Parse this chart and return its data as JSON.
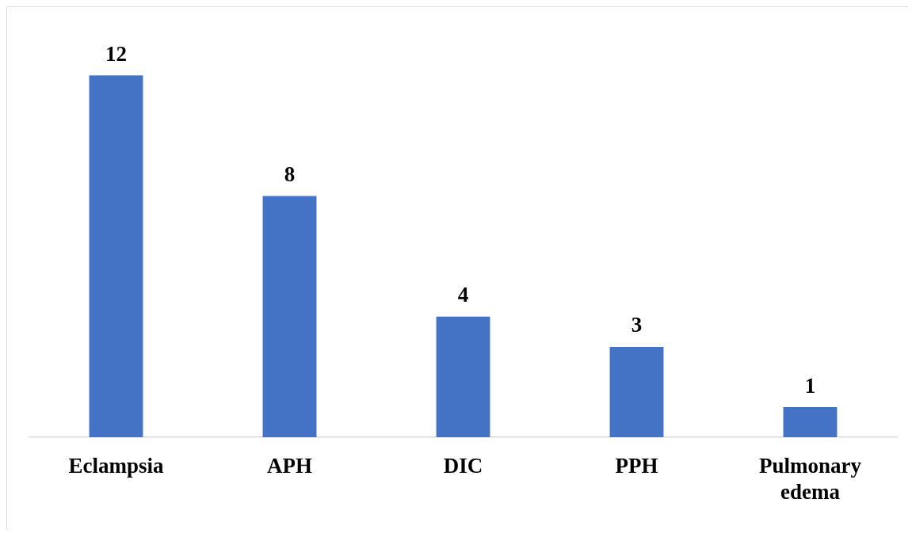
{
  "chart_data": {
    "type": "bar",
    "categories": [
      "Eclampsia",
      "APH",
      "DIC",
      "PPH",
      "Pulmonary edema"
    ],
    "values": [
      12,
      8,
      4,
      3,
      1
    ],
    "color": "#4472c4",
    "data_labels": true,
    "grid": false,
    "legend": false
  }
}
